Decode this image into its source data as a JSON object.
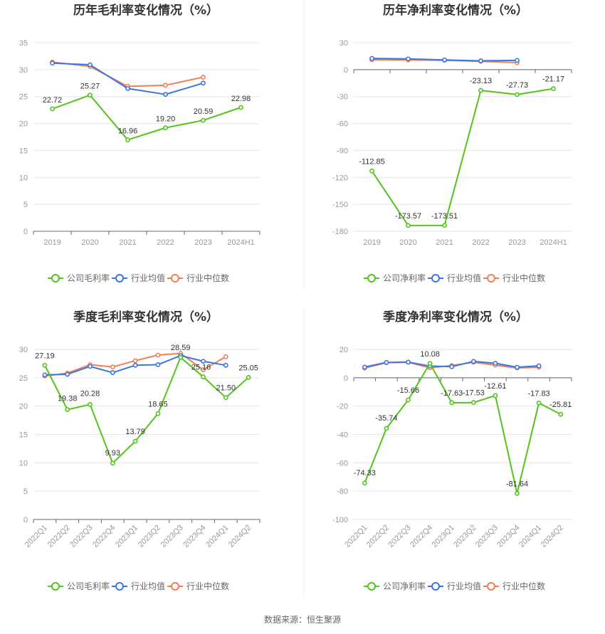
{
  "footer": {
    "source": "数据来源：恒生聚源"
  },
  "chart_data": [
    {
      "type": "line",
      "title": "历年毛利率变化情况（%）",
      "categories": [
        "2019",
        "2020",
        "2021",
        "2022",
        "2023",
        "2024H1"
      ],
      "ylim": [
        0,
        35
      ],
      "yticks": [
        0,
        5,
        10,
        15,
        20,
        25,
        30,
        35
      ],
      "series": [
        {
          "name": "公司毛利率",
          "color": "#52c41a",
          "values": [
            22.72,
            25.27,
            16.96,
            19.2,
            20.59,
            22.98
          ],
          "labels": [
            "22.72",
            "25.27",
            "16.96",
            "19.20",
            "20.59",
            "22.98"
          ]
        },
        {
          "name": "行业均值",
          "color": "#3a75e0",
          "values": [
            31.2,
            30.9,
            26.5,
            25.4,
            27.5,
            null
          ]
        },
        {
          "name": "行业中位数",
          "color": "#f07f55",
          "values": [
            31.4,
            30.6,
            26.9,
            27.1,
            28.6,
            null
          ]
        }
      ]
    },
    {
      "type": "line",
      "title": "历年净利率变化情况（%）",
      "categories": [
        "2019",
        "2020",
        "2021",
        "2022",
        "2023",
        "2024H1"
      ],
      "ylim": [
        -180,
        30
      ],
      "yticks": [
        -180,
        -150,
        -120,
        -90,
        -60,
        -30,
        0,
        30
      ],
      "series": [
        {
          "name": "公司净利率",
          "color": "#52c41a",
          "values": [
            -112.85,
            -173.57,
            -173.51,
            -23.13,
            -27.73,
            -21.17
          ],
          "labels": [
            "-112.85",
            "-173.57",
            "-173.51",
            "-23.13",
            "-27.73",
            "-21.17"
          ]
        },
        {
          "name": "行业均值",
          "color": "#3a75e0",
          "values": [
            12.5,
            12.0,
            10.8,
            9.8,
            10.3,
            null
          ]
        },
        {
          "name": "行业中位数",
          "color": "#f07f55",
          "values": [
            11.0,
            10.8,
            10.4,
            9.2,
            7.8,
            null
          ]
        }
      ]
    },
    {
      "type": "line",
      "title": "季度毛利率变化情况（%）",
      "categories": [
        "2022Q1",
        "2022Q2",
        "2022Q3",
        "2022Q4",
        "2023Q1",
        "2023Q2",
        "2023Q3",
        "2023Q4",
        "2024Q1",
        "2024Q2"
      ],
      "ylim": [
        0,
        30
      ],
      "yticks": [
        0,
        5,
        10,
        15,
        20,
        25,
        30
      ],
      "series": [
        {
          "name": "公司毛利率",
          "color": "#52c41a",
          "values": [
            27.19,
            19.38,
            20.28,
            9.93,
            13.79,
            18.65,
            28.59,
            25.16,
            21.5,
            25.05
          ],
          "labels": [
            "27.19",
            "19.38",
            "20.28",
            "9.93",
            "13.79",
            "18.65",
            "28.59",
            "25.16",
            "21.50",
            "25.05"
          ]
        },
        {
          "name": "行业均值",
          "color": "#3a75e0",
          "values": [
            25.5,
            25.6,
            27.0,
            25.9,
            27.2,
            27.3,
            28.9,
            27.9,
            27.2,
            null
          ]
        },
        {
          "name": "行业中位数",
          "color": "#f07f55",
          "values": [
            25.3,
            25.8,
            27.3,
            26.9,
            28.0,
            29.0,
            29.3,
            26.4,
            28.7,
            null
          ]
        }
      ]
    },
    {
      "type": "line",
      "title": "季度净利率变化情况（%）",
      "categories": [
        "2022Q1",
        "2022Q2",
        "2022Q3",
        "2022Q4",
        "2023Q1",
        "2023Q2",
        "2023Q3",
        "2023Q4",
        "2024Q1",
        "2024Q2"
      ],
      "ylim": [
        -100,
        20
      ],
      "yticks": [
        -100,
        -80,
        -60,
        -40,
        -20,
        0,
        20
      ],
      "series": [
        {
          "name": "公司净利率",
          "color": "#52c41a",
          "values": [
            -74.33,
            -35.74,
            -15.66,
            10.08,
            -17.63,
            -17.53,
            -12.61,
            -81.64,
            -17.83,
            -25.81
          ],
          "labels": [
            "-74.33",
            "-35.74",
            "-15.66",
            "10.08",
            "-17.63",
            "-17.53",
            "-12.61",
            "-81.64",
            "-17.83",
            "-25.81"
          ]
        },
        {
          "name": "行业均值",
          "color": "#3a75e0",
          "values": [
            7.5,
            10.8,
            11.0,
            8.2,
            7.8,
            11.5,
            10.2,
            7.4,
            8.4,
            null
          ]
        },
        {
          "name": "行业中位数",
          "color": "#f07f55",
          "values": [
            6.8,
            10.6,
            10.9,
            7.0,
            8.6,
            10.9,
            8.9,
            6.9,
            7.4,
            null
          ]
        }
      ]
    }
  ]
}
